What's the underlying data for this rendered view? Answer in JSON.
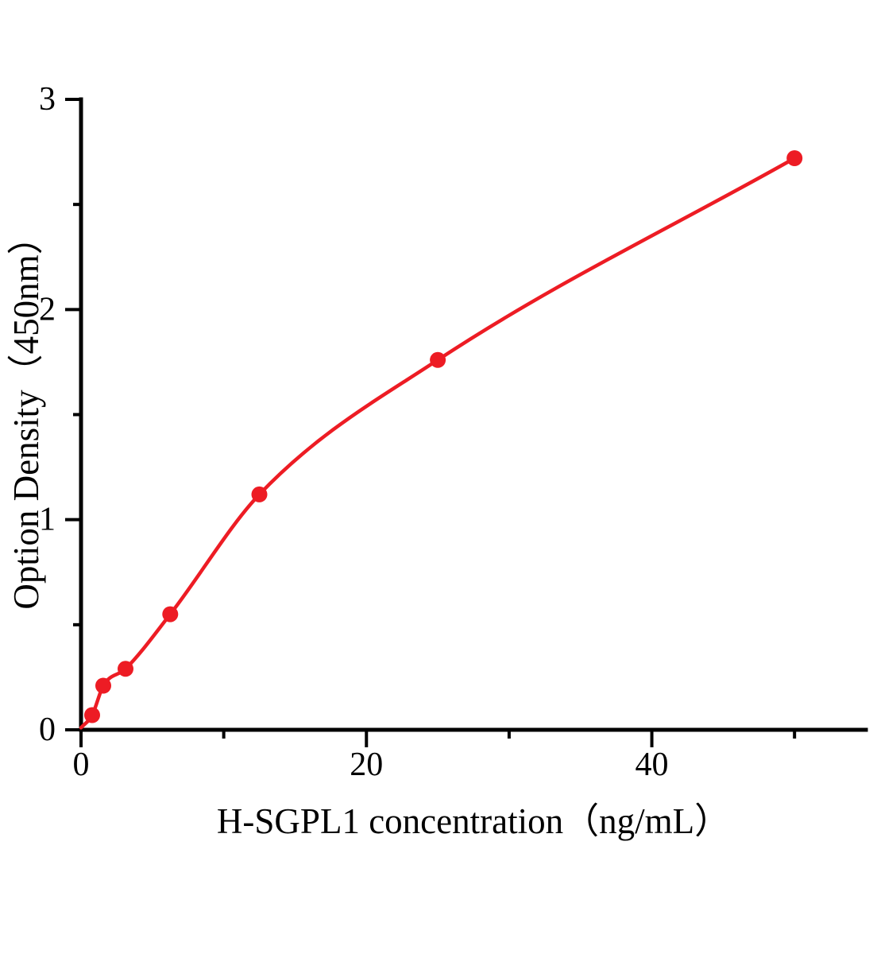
{
  "figure": {
    "background": "#ffffff"
  },
  "chart_data": {
    "type": "scatter",
    "title": "",
    "xlabel": "H-SGPL1 concentration（ng/mL）",
    "ylabel": "Option Density（450nm）",
    "x": [
      0.78,
      1.56,
      3.12,
      6.25,
      12.5,
      25,
      50
    ],
    "y": [
      0.07,
      0.21,
      0.29,
      0.55,
      1.12,
      1.76,
      2.72
    ],
    "fit_curve": {
      "style": "smooth-through-points",
      "start_point": {
        "x": 0,
        "y": 0.01
      }
    },
    "xlim": [
      0,
      55
    ],
    "ylim": [
      0,
      3
    ],
    "x_major_ticks": [
      {
        "value": 0,
        "label": "0"
      },
      {
        "value": 20,
        "label": "20"
      },
      {
        "value": 40,
        "label": "40"
      }
    ],
    "x_minor_ticks": [
      10,
      30,
      50
    ],
    "y_major_ticks": [
      {
        "value": 0,
        "label": "0"
      },
      {
        "value": 1,
        "label": "1"
      },
      {
        "value": 2,
        "label": "2"
      },
      {
        "value": 3,
        "label": "3"
      }
    ],
    "y_minor_ticks": [
      0.5,
      1.5,
      2.5
    ],
    "grid": false,
    "legend": "none",
    "colors": {
      "curve": "#ed1c24",
      "marker": "#ed1c24",
      "axis": "#000000",
      "text": "#000000"
    }
  }
}
